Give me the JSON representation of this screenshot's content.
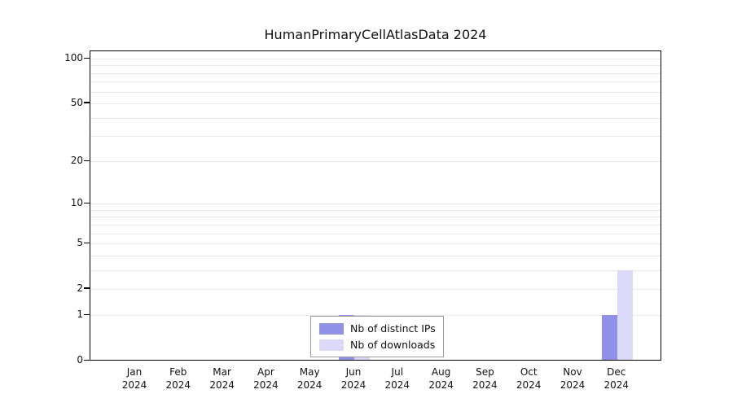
{
  "chart_data": {
    "type": "bar",
    "title": "HumanPrimaryCellAtlasData 2024",
    "x_year": "2024",
    "categories": [
      "Jan",
      "Feb",
      "Mar",
      "Apr",
      "May",
      "Jun",
      "Jul",
      "Aug",
      "Sep",
      "Oct",
      "Nov",
      "Dec"
    ],
    "series": [
      {
        "name": "Nb of distinct IPs",
        "color": "#9191e8",
        "values": [
          0,
          0,
          0,
          0,
          0,
          1,
          0,
          0,
          0,
          0,
          0,
          1
        ]
      },
      {
        "name": "Nb of downloads",
        "color": "#dadaf8",
        "values": [
          0,
          0,
          0,
          0,
          0,
          1,
          0,
          0,
          0,
          0,
          0,
          3
        ]
      }
    ],
    "scale": "log10(1+y)",
    "ylim": [
      0,
      100
    ],
    "y_ticks": [
      0,
      1,
      2,
      5,
      10,
      20,
      50,
      100
    ],
    "gridline_values": [
      1,
      2,
      3,
      4,
      5,
      6,
      7,
      8,
      9,
      10,
      20,
      30,
      40,
      50,
      60,
      70,
      80,
      90,
      100
    ],
    "grid": true,
    "legend_position": "bottom-center"
  }
}
